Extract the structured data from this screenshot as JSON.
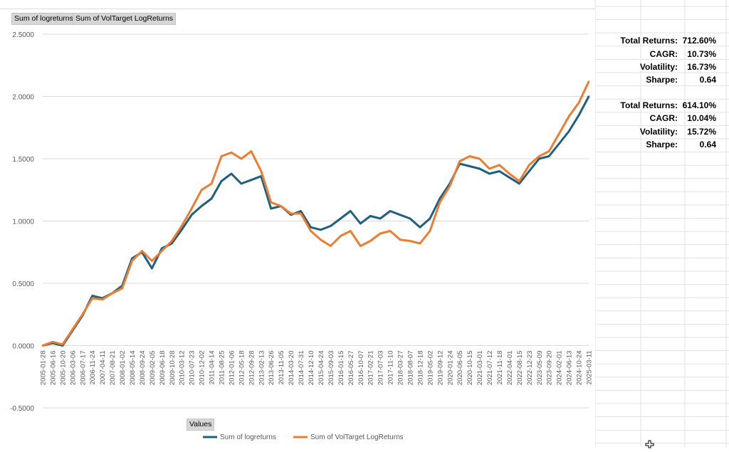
{
  "field_buttons": {
    "logreturns": "Sum of logreturns",
    "voltarget": "Sum of VolTarget LogReturns",
    "values": "Values"
  },
  "stats": {
    "block1": [
      {
        "label": "Total Returns:",
        "value": "712.60%"
      },
      {
        "label": "CAGR:",
        "value": "10.73%"
      },
      {
        "label": "Volatility:",
        "value": "16.73%"
      },
      {
        "label": "Sharpe:",
        "value": "0.64"
      }
    ],
    "block2": [
      {
        "label": "Total Returns:",
        "value": "614.10%"
      },
      {
        "label": "CAGR:",
        "value": "10.04%"
      },
      {
        "label": "Volatility:",
        "value": "15.72%"
      },
      {
        "label": "Sharpe:",
        "value": "0.64"
      }
    ]
  },
  "chart_data": {
    "type": "line",
    "title": "",
    "xlabel": "",
    "ylabel": "",
    "ylim": [
      -0.5,
      2.5
    ],
    "yticks": [
      "2.5000",
      "2.0000",
      "1.5000",
      "1.0000",
      "0.5000",
      "0.0000",
      "-0.5000"
    ],
    "xtick_labels": [
      "2005-01-28",
      "2005-06-16",
      "2005-10-20",
      "2006-03-06",
      "2006-07-17",
      "2006-11-24",
      "2007-04-11",
      "2007-08-21",
      "2008-01-02",
      "2008-05-14",
      "2008-09-24",
      "2009-02-05",
      "2009-06-18",
      "2009-10-28",
      "2010-03-12",
      "2010-07-23",
      "2010-12-02",
      "2011-04-14",
      "2011-08-25",
      "2012-01-06",
      "2012-05-18",
      "2012-09-28",
      "2013-02-13",
      "2013-06-26",
      "2013-11-05",
      "2014-03-20",
      "2014-07-31",
      "2014-12-10",
      "2015-04-24",
      "2015-09-03",
      "2016-01-15",
      "2016-05-27",
      "2016-10-07",
      "2017-02-21",
      "2017-07-03",
      "2017-11-10",
      "2018-03-27",
      "2018-08-07",
      "2018-12-18",
      "2019-05-02",
      "2019-09-12",
      "2020-01-24",
      "2020-06-05",
      "2020-10-15",
      "2021-03-01",
      "2021-07-12",
      "2021-11-18",
      "2022-04-01",
      "2022-08-15",
      "2022-12-23",
      "2023-05-09",
      "2023-09-20",
      "2024-02-01",
      "2024-06-13",
      "2024-10-24",
      "2025-03-11"
    ],
    "grid": true,
    "legend_position": "bottom",
    "series": [
      {
        "name": "Sum of logreturns",
        "color": "#1f5f7f",
        "values": [
          0.0,
          0.02,
          0.0,
          0.12,
          0.24,
          0.4,
          0.38,
          0.42,
          0.48,
          0.7,
          0.75,
          0.62,
          0.78,
          0.82,
          0.93,
          1.05,
          1.12,
          1.18,
          1.32,
          1.38,
          1.3,
          1.33,
          1.36,
          1.1,
          1.12,
          1.05,
          1.08,
          0.95,
          0.93,
          0.96,
          1.02,
          1.08,
          0.98,
          1.04,
          1.02,
          1.08,
          1.05,
          1.02,
          0.95,
          1.02,
          1.18,
          1.3,
          1.46,
          1.44,
          1.42,
          1.38,
          1.4,
          1.35,
          1.3,
          1.4,
          1.5,
          1.52,
          1.62,
          1.72,
          1.85,
          2.0
        ]
      },
      {
        "name": "Sum of VolTarget LogReturns",
        "color": "#ed7d31",
        "values": [
          0.0,
          0.03,
          0.01,
          0.13,
          0.25,
          0.38,
          0.37,
          0.42,
          0.46,
          0.68,
          0.76,
          0.68,
          0.76,
          0.84,
          0.96,
          1.1,
          1.25,
          1.3,
          1.52,
          1.55,
          1.5,
          1.56,
          1.4,
          1.15,
          1.12,
          1.06,
          1.06,
          0.92,
          0.85,
          0.8,
          0.88,
          0.92,
          0.8,
          0.84,
          0.9,
          0.92,
          0.85,
          0.84,
          0.82,
          0.92,
          1.15,
          1.28,
          1.48,
          1.52,
          1.5,
          1.42,
          1.45,
          1.38,
          1.32,
          1.45,
          1.52,
          1.56,
          1.7,
          1.84,
          1.95,
          2.12
        ]
      }
    ]
  }
}
